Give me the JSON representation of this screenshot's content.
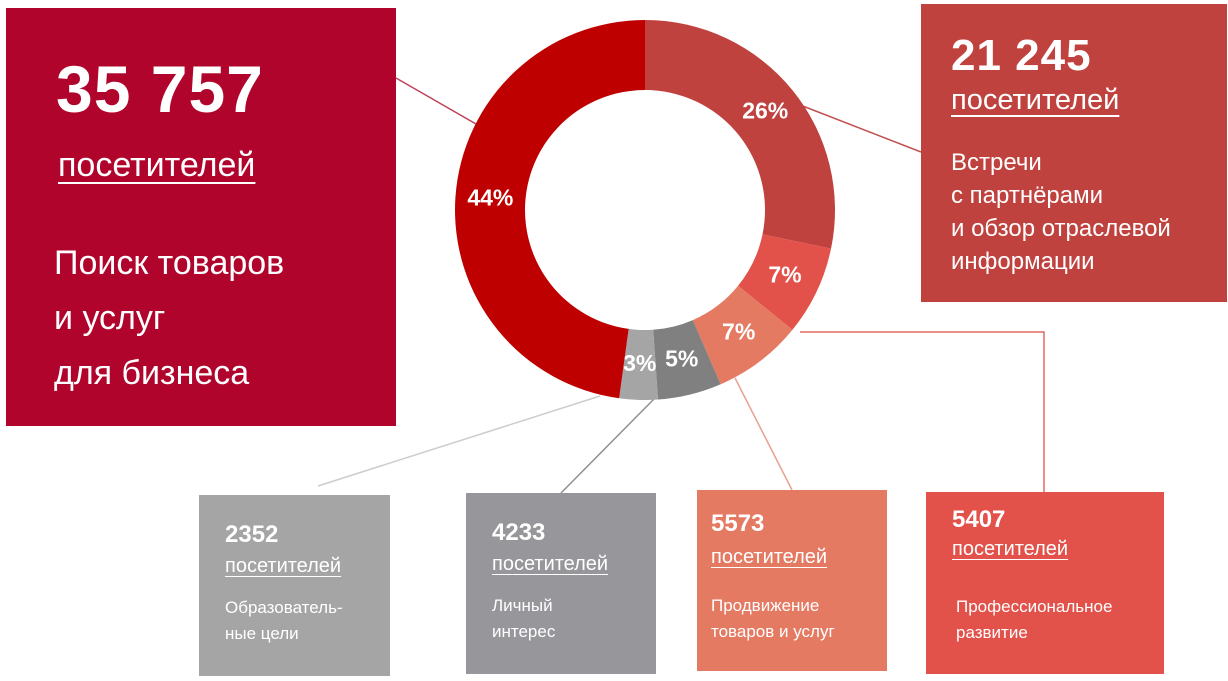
{
  "chart_data": {
    "type": "pie",
    "slices": [
      {
        "label": "26%",
        "value": 26,
        "color": "#c0423f"
      },
      {
        "label": "7%",
        "value": 7,
        "color": "#e2524a"
      },
      {
        "label": "7%",
        "value": 7,
        "color": "#e57a63"
      },
      {
        "label": "5%",
        "value": 5,
        "color": "#808080"
      },
      {
        "label": "3%",
        "value": 3,
        "color": "#a5a5a5"
      },
      {
        "label": "44%",
        "value": 44,
        "color": "#bf0000"
      }
    ]
  },
  "callouts": {
    "search": {
      "count": "35 757",
      "unit": "посетителей",
      "desc": [
        "Поиск товаров",
        "и услуг",
        "для бизнеса"
      ],
      "color": "#b0042c"
    },
    "meetings": {
      "count": "21 245",
      "unit": "посетителей",
      "desc": [
        "Встречи",
        "с партнёрами",
        "и обзор отраслевой",
        "информации"
      ],
      "color": "#c0423f"
    },
    "education": {
      "count": "2352",
      "unit": "посетителей",
      "desc": [
        "Образователь-",
        "ные цели"
      ],
      "color": "#a5a5a5"
    },
    "personal": {
      "count": "4233",
      "unit": "посетителей",
      "desc": [
        "Личный",
        "интерес"
      ],
      "color": "#97969a"
    },
    "promotion": {
      "count": "5573",
      "unit": "посетителей",
      "desc": [
        "Продвижение",
        "товаров и услуг"
      ],
      "color": "#e57a63"
    },
    "professional": {
      "count": "5407",
      "unit": "посетителей",
      "desc": [
        "Профессиональное",
        "развитие"
      ],
      "color": "#e2524a"
    }
  }
}
